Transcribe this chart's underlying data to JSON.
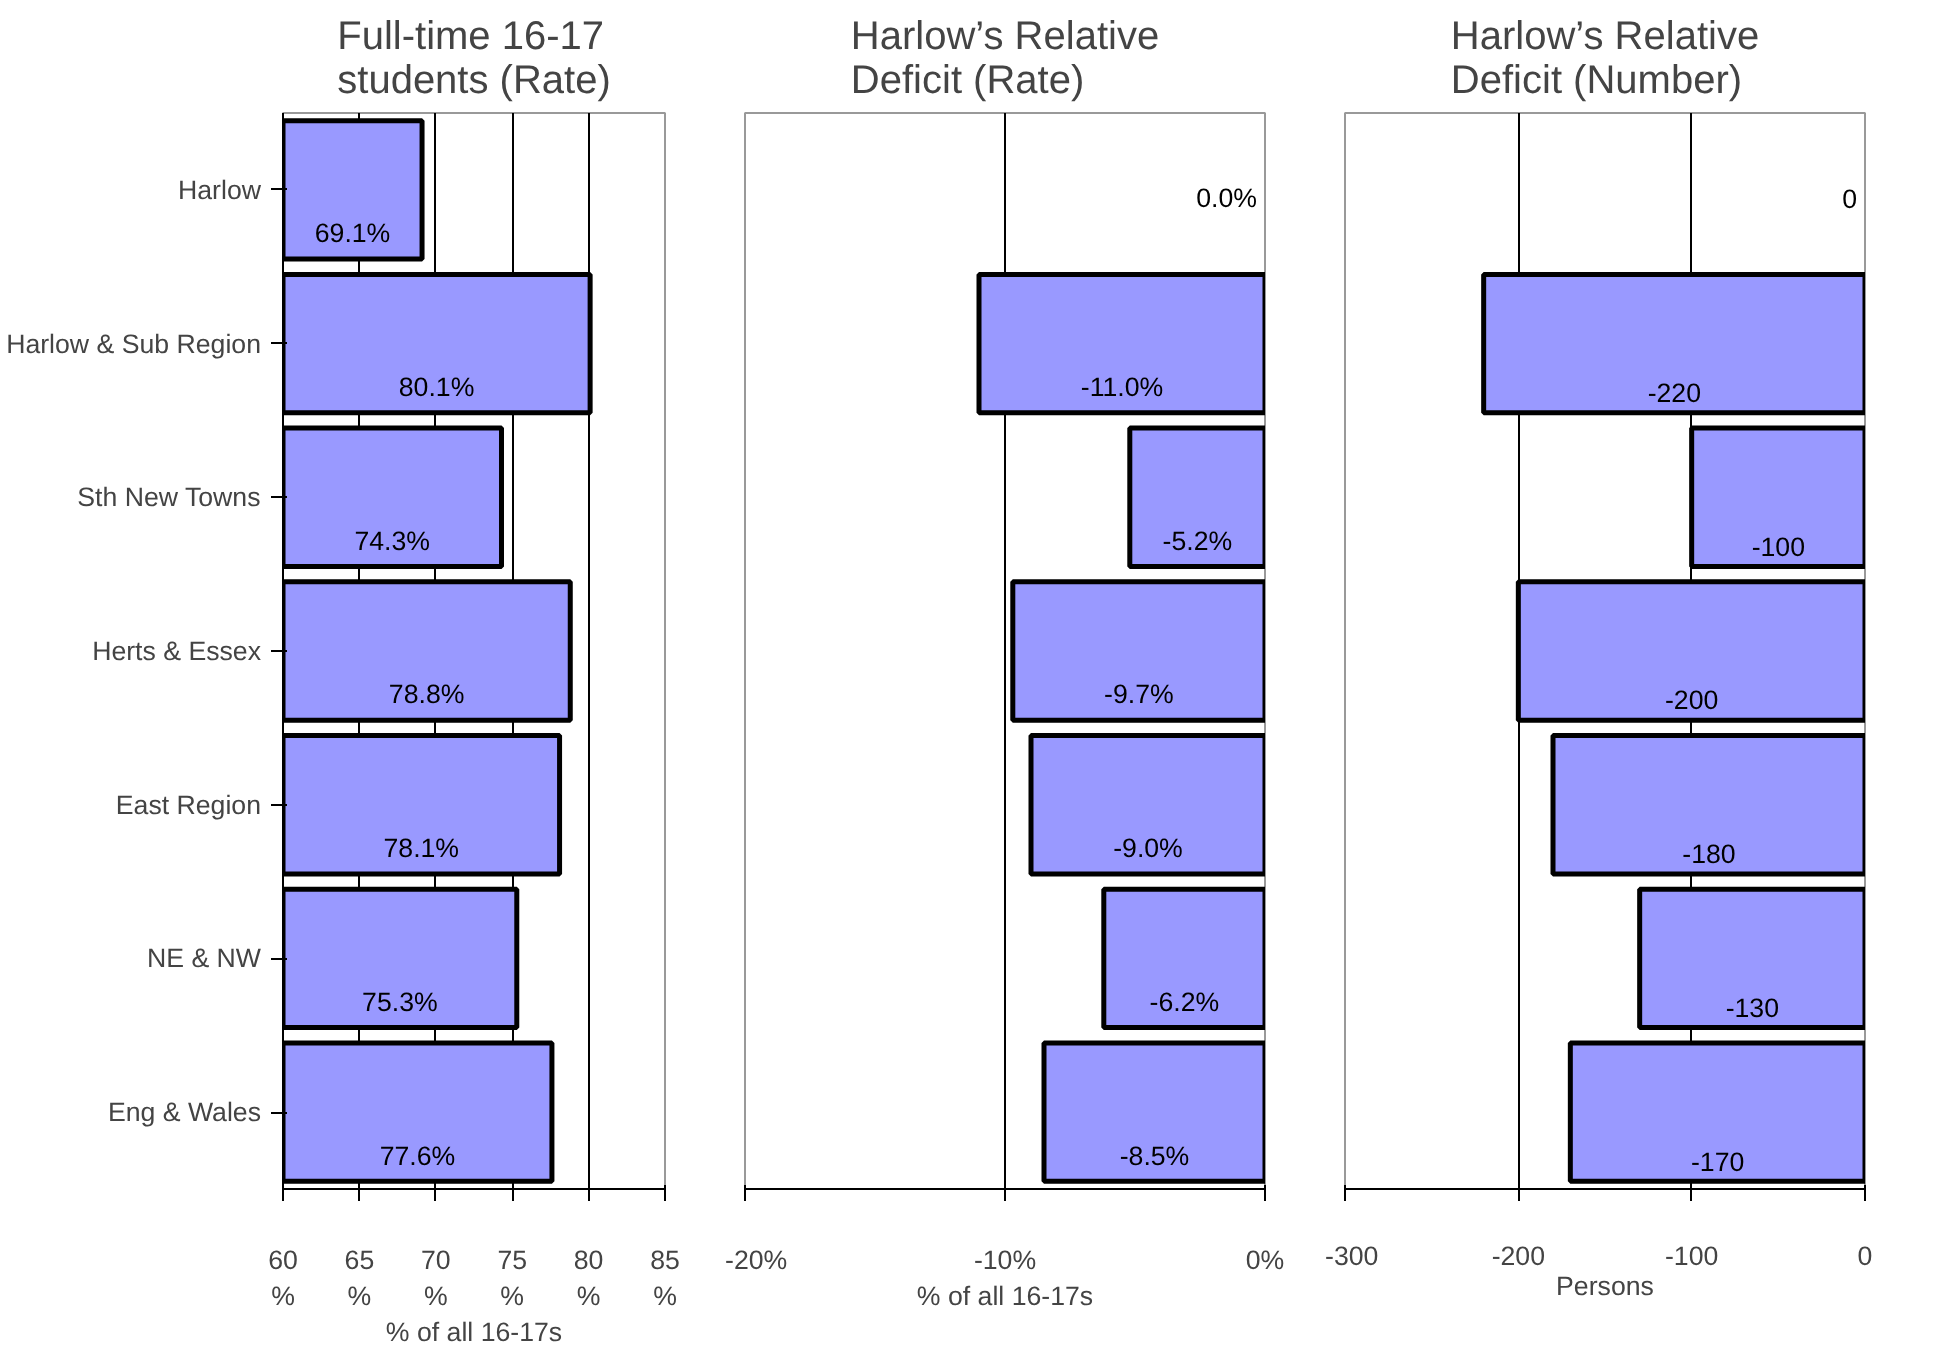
{
  "chart_data": [
    {
      "type": "bar",
      "orientation": "horizontal",
      "title": "Full-time 16-17 students (Rate)",
      "xlabel": "% of all 16-17s",
      "categories": [
        "Harlow",
        "Harlow & Sub Region",
        "Sth New Towns",
        "Herts & Essex",
        "East Region",
        "NE & NW",
        "Eng & Wales"
      ],
      "values": [
        69.1,
        80.1,
        74.3,
        78.8,
        78.1,
        75.3,
        77.6
      ],
      "color": "#9999ff",
      "value_labels": [
        "69.1%",
        "80.1%",
        "74.3%",
        "78.8%",
        "78.1%",
        "75.3%",
        "77.6%"
      ],
      "xlim": [
        60,
        85
      ],
      "xticks": [
        {
          "value": 60,
          "label": "60\n%"
        },
        {
          "value": 65,
          "label": "65\n%"
        },
        {
          "value": 70,
          "label": "70\n%"
        },
        {
          "value": 75,
          "label": "75\n%"
        },
        {
          "value": 80,
          "label": "80\n%"
        },
        {
          "value": 85,
          "label": "85\n%"
        }
      ],
      "grid": "x"
    },
    {
      "type": "bar",
      "orientation": "horizontal",
      "title": "Harlow’s Relative Deficit (Rate)",
      "xlabel": "% of all 16-17s",
      "categories": [
        "Harlow",
        "Harlow & Sub Region",
        "Sth New Towns",
        "Herts & Essex",
        "East Region",
        "NE & NW",
        "Eng & Wales"
      ],
      "values": [
        0.0,
        -11.0,
        -5.2,
        -9.7,
        -9.0,
        -6.2,
        -8.5
      ],
      "color": "#9999ff",
      "value_labels": [
        "0.0%",
        "-11.0%",
        "-5.2%",
        "-9.7%",
        "-9.0%",
        "-6.2%",
        "-8.5%"
      ],
      "xlim": [
        -20,
        0
      ],
      "xticks": [
        {
          "value": -20,
          "label": "-20%"
        },
        {
          "value": -10,
          "label": "-10%"
        },
        {
          "value": 0,
          "label": "0%"
        }
      ],
      "grid": "x",
      "tick_labels": "x"
    },
    {
      "type": "bar",
      "orientation": "horizontal",
      "title": "Harlow’s Relative Deficit (Number)",
      "xlabel": "Persons",
      "categories": [
        "Harlow",
        "Harlow & Sub Region",
        "Sth New Towns",
        "Herts & Essex",
        "East Region",
        "NE & NW",
        "Eng & Wales"
      ],
      "values": [
        0,
        -220,
        -100,
        -200,
        -180,
        -130,
        -170
      ],
      "color": "#9999ff",
      "value_labels": [
        "0",
        "-220",
        "-100",
        "-200",
        "-180",
        "-130",
        "-170"
      ],
      "xlim": [
        -300,
        0
      ],
      "xticks": [
        -300,
        -200,
        -100,
        0
      ],
      "grid": "x",
      "tick_labels": "x"
    }
  ]
}
